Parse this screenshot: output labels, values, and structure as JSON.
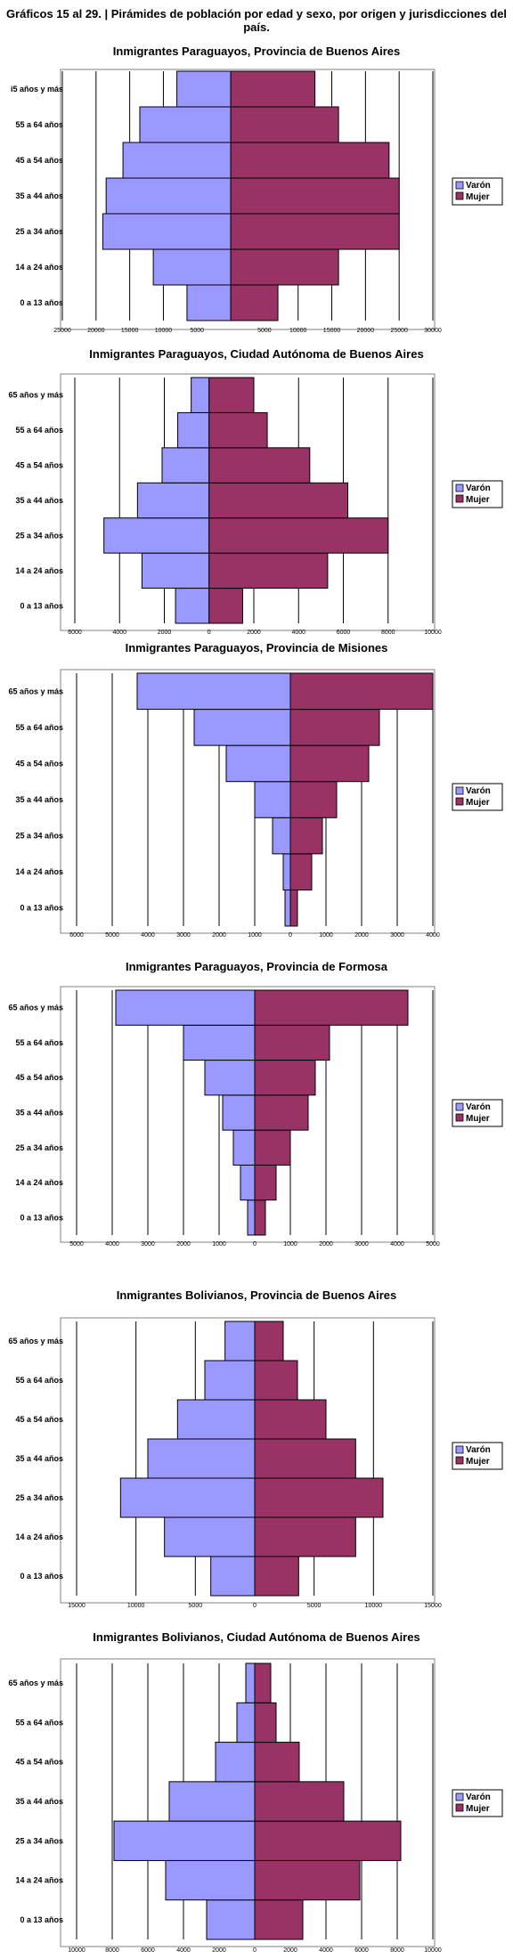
{
  "main_title": "Gráficos 15 al 29. | Pirámides de población por edad y sexo, por origen y jurisdicciones del país.",
  "colors": {
    "varon": "#9999ff",
    "mujer": "#993366",
    "grid": "#000000"
  },
  "chart_data": [
    {
      "type": "bar",
      "orientation": "horizontal-pyramid",
      "title": "Inmigrantes Paraguayos, Provincia de Buenos Aires",
      "categories": [
        "0 a 13 años",
        "14 a 24 años",
        "25 a 34 años",
        "35 a 44 años",
        "45 a 54 años",
        "55 a 64 años",
        "i5 años y más"
      ],
      "series": [
        {
          "name": "Varón",
          "values": [
            6500,
            11500,
            19000,
            18500,
            16000,
            13500,
            8000
          ]
        },
        {
          "name": "Mujer",
          "values": [
            7000,
            16000,
            25000,
            25000,
            23500,
            16000,
            12500
          ]
        }
      ],
      "xlim": [
        -25000,
        30000
      ],
      "xticks": [
        -25000,
        -20000,
        -15000,
        -10000,
        -5000,
        0,
        5000,
        10000,
        15000,
        20000,
        25000,
        30000
      ],
      "xtick_labels": [
        "25000",
        "20000",
        "15000",
        "10000",
        "5000",
        "",
        "5000",
        "10000",
        "15000",
        "20000",
        "25000",
        "30000"
      ],
      "legend": "right",
      "grid": true
    },
    {
      "type": "bar",
      "orientation": "horizontal-pyramid",
      "title": "Inmigrantes Paraguayos, Ciudad Autónoma de Buenos Aires",
      "categories": [
        "0 a 13 años",
        "14 a 24 años",
        "25 a 34 años",
        "35 a 44 años",
        "45 a 54 años",
        "55 a 64 años",
        "65 años y más"
      ],
      "series": [
        {
          "name": "Varón",
          "values": [
            1500,
            3000,
            4700,
            3200,
            2100,
            1400,
            800
          ]
        },
        {
          "name": "Mujer",
          "values": [
            1500,
            5300,
            8000,
            6200,
            4500,
            2600,
            2000
          ]
        }
      ],
      "xlim": [
        -6000,
        10000
      ],
      "xticks": [
        -6000,
        -4000,
        -2000,
        0,
        2000,
        4000,
        6000,
        8000,
        10000
      ],
      "xtick_labels": [
        "6000",
        "4000",
        "2000",
        "0",
        "2000",
        "4000",
        "6000",
        "8000",
        "10000"
      ],
      "legend": "right",
      "grid": true
    },
    {
      "type": "bar",
      "orientation": "horizontal-pyramid",
      "title": "Inmigrantes Paraguayos, Provincia de Misiones",
      "categories": [
        "0 a 13 años",
        "14 a 24 años",
        "25 a 34 años",
        "35 a 44 años",
        "45 a 54 años",
        "55 a 64 años",
        "65 años y más"
      ],
      "series": [
        {
          "name": "Varón",
          "values": [
            150,
            200,
            500,
            1000,
            1800,
            2700,
            4300
          ]
        },
        {
          "name": "Mujer",
          "values": [
            200,
            600,
            900,
            1300,
            2200,
            2500,
            4000
          ]
        }
      ],
      "xlim": [
        -6000,
        4000
      ],
      "xticks": [
        -6000,
        -5000,
        -4000,
        -3000,
        -2000,
        -1000,
        0,
        1000,
        2000,
        3000,
        4000
      ],
      "xtick_labels": [
        "6000",
        "5000",
        "4000",
        "3000",
        "2000",
        "1000",
        "0",
        "1000",
        "2000",
        "3000",
        "4000"
      ],
      "legend": "right",
      "grid": true
    },
    {
      "type": "bar",
      "orientation": "horizontal-pyramid",
      "title": "Inmigrantes Paraguayos, Provincia de Formosa",
      "categories": [
        "0 a 13 años",
        "14 a 24 años",
        "25 a 34 años",
        "35 a 44 años",
        "45 a 54 años",
        "55 a 64 años",
        "65 años y más"
      ],
      "series": [
        {
          "name": "Varón",
          "values": [
            200,
            400,
            600,
            900,
            1400,
            2000,
            3900
          ]
        },
        {
          "name": "Mujer",
          "values": [
            300,
            600,
            1000,
            1500,
            1700,
            2100,
            4300
          ]
        }
      ],
      "xlim": [
        -5000,
        5000
      ],
      "xticks": [
        -5000,
        -4000,
        -3000,
        -2000,
        -1000,
        0,
        1000,
        2000,
        3000,
        4000,
        5000
      ],
      "xtick_labels": [
        "5000",
        "4000",
        "3000",
        "2000",
        "1000",
        "0",
        "1000",
        "2000",
        "3000",
        "4000",
        "5000"
      ],
      "legend": "right",
      "grid": true
    },
    {
      "type": "bar",
      "orientation": "horizontal-pyramid",
      "title": "Inmigrantes Bolivianos, Provincia de Buenos Aires",
      "categories": [
        "0 a 13 años",
        "14 a 24 años",
        "25 a 34 años",
        "35 a 44 años",
        "45 a 54 años",
        "55 a 64 años",
        "65 años y más"
      ],
      "series": [
        {
          "name": "Varón",
          "values": [
            3700,
            7600,
            11300,
            9000,
            6500,
            4200,
            2500
          ]
        },
        {
          "name": "Mujer",
          "values": [
            3700,
            8500,
            10800,
            8500,
            6000,
            3600,
            2400
          ]
        }
      ],
      "xlim": [
        -15000,
        15000
      ],
      "xticks": [
        -15000,
        -10000,
        -5000,
        0,
        5000,
        10000,
        15000
      ],
      "xtick_labels": [
        "15000",
        "10000",
        "5000",
        "0",
        "5000",
        "10000",
        "15000"
      ],
      "legend": "right",
      "grid": true
    },
    {
      "type": "bar",
      "orientation": "horizontal-pyramid",
      "title": "Inmigrantes Bolivianos, Ciudad Autónoma de Buenos Aires",
      "categories": [
        "0 a 13 años",
        "14 a 24 años",
        "25 a 34 años",
        "35 a 44 años",
        "45 a 54 años",
        "55 a 64 años",
        "65 años y más"
      ],
      "series": [
        {
          "name": "Varón",
          "values": [
            2700,
            5000,
            7900,
            4800,
            2200,
            1000,
            500
          ]
        },
        {
          "name": "Mujer",
          "values": [
            2700,
            5900,
            8200,
            5000,
            2500,
            1200,
            900
          ]
        }
      ],
      "xlim": [
        -10000,
        10000
      ],
      "xticks": [
        -10000,
        -8000,
        -6000,
        -4000,
        -2000,
        0,
        2000,
        4000,
        6000,
        8000,
        10000
      ],
      "xtick_labels": [
        "10000",
        "8000",
        "6000",
        "4000",
        "2000",
        "0",
        "2000",
        "4000",
        "6000",
        "8000",
        "10000"
      ],
      "legend": "right",
      "grid": true
    }
  ]
}
